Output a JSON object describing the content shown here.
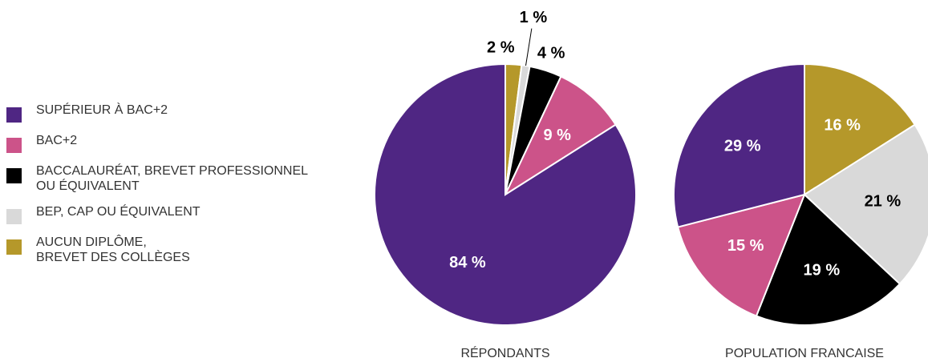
{
  "legend": [
    {
      "name": "SUPÉRIEUR À BAC+2",
      "color": "#4f2683"
    },
    {
      "name": "BAC+2",
      "color": "#cc5389"
    },
    {
      "name": "BACCALAURÉAT, BREVET PROFESSIONNEL\nOU ÉQUIVALENT",
      "color": "#000000"
    },
    {
      "name": "BEP, CAP OU ÉQUIVALENT",
      "color": "#d9d9d9"
    },
    {
      "name": "AUCUN DIPLÔME,\nBREVET DES COLLÈGES",
      "color": "#b5982a"
    }
  ],
  "chart_data": [
    {
      "type": "pie",
      "title": "RÉPONDANTS",
      "values": [
        84,
        9,
        4,
        1,
        2
      ],
      "value_labels": [
        "84 %",
        "9 %",
        "4 %",
        "1 %",
        "2 %"
      ]
    },
    {
      "type": "pie",
      "title": "POPULATION FRANCAISE",
      "values": [
        29,
        15,
        19,
        21,
        16
      ],
      "value_labels": [
        "29 %",
        "15 %",
        "19 %",
        "21 %",
        "16 %"
      ]
    }
  ]
}
